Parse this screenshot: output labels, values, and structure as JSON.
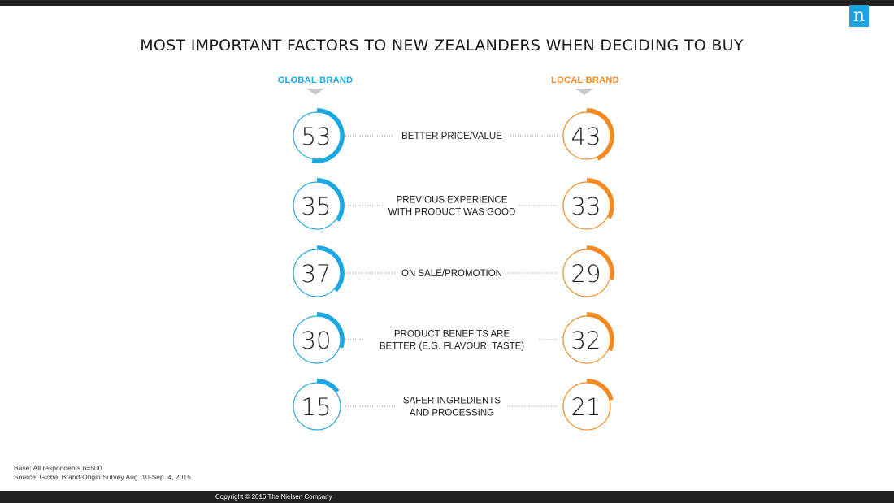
{
  "logo": {
    "glyph": "n",
    "color": "#1aa3dc"
  },
  "title": "MOST IMPORTANT FACTORS TO NEW ZEALANDERS WHEN DECIDING TO BUY",
  "footnotes": {
    "base": "Base: All respondents n=500",
    "source": "Source: Global Brand-Origin Survey Aug. 10-Sep. 4, 2015"
  },
  "copyright": "Copyright © 2016 The Nielsen Company",
  "colors": {
    "global": "#1ba7e0",
    "local": "#f28a21",
    "dots": "#8a8a8a",
    "text": "#1a1a1a"
  },
  "chart_data": {
    "type": "bar",
    "title": "MOST IMPORTANT FACTORS TO NEW ZEALANDERS WHEN DECIDING TO BUY",
    "categories": [
      [
        "BETTER PRICE/VALUE"
      ],
      [
        "PREVIOUS EXPERIENCE",
        "WITH PRODUCT WAS GOOD"
      ],
      [
        "ON SALE/PROMOTION"
      ],
      [
        "PRODUCT BENEFITS ARE",
        "BETTER (E.G. FLAVOUR, TASTE)"
      ],
      [
        "SAFER INGREDIENTS",
        "AND PROCESSING"
      ]
    ],
    "series": [
      {
        "name": "GLOBAL BRAND",
        "values": [
          53,
          35,
          37,
          30,
          15
        ],
        "color": "#1ba7e0"
      },
      {
        "name": "LOCAL BRAND",
        "values": [
          43,
          33,
          29,
          32,
          21
        ],
        "color": "#f28a21"
      }
    ],
    "ylim": [
      0,
      100
    ]
  }
}
